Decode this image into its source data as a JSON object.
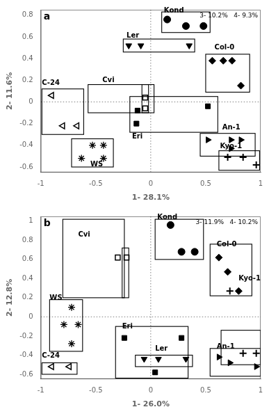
{
  "chart_data": [
    {
      "type": "scatter",
      "title": "a",
      "xlabel": "1- 28.1%",
      "ylabel": "2- 11.6%",
      "annotation": "3- 10.2%   4- 9.3%",
      "xlim": [
        -1.0,
        1.0
      ],
      "ylim": [
        -0.65,
        0.85
      ],
      "xticks": [
        -1,
        -0.5,
        0,
        0.5,
        1
      ],
      "yticks": [
        -0.6,
        -0.4,
        -0.2,
        0,
        0.2,
        0.4,
        0.6,
        0.8
      ],
      "grid": false,
      "legend": "none",
      "color": "black",
      "hlines": [
        0
      ],
      "vlines": [
        0
      ],
      "series": [
        {
          "name": "Kond",
          "marker": "filled_circle",
          "points": [
            [
              0.15,
              0.76
            ],
            [
              0.32,
              0.7
            ],
            [
              0.48,
              0.7
            ]
          ],
          "label_at": [
            0.12,
            0.81
          ],
          "box": [
            0.1,
            0.64,
            0.44,
            0.19
          ]
        },
        {
          "name": "Ler",
          "marker": "filled_tri_down",
          "points": [
            [
              -0.2,
              0.52
            ],
            [
              -0.09,
              0.52
            ],
            [
              0.35,
              0.52
            ]
          ],
          "label_at": [
            -0.22,
            0.58
          ],
          "box": [
            -0.25,
            0.46,
            0.65,
            0.12
          ]
        },
        {
          "name": "Col-0",
          "marker": "filled_diamond",
          "points": [
            [
              0.56,
              0.38
            ],
            [
              0.66,
              0.38
            ],
            [
              0.74,
              0.38
            ],
            [
              0.82,
              0.15
            ]
          ],
          "label_at": [
            0.58,
            0.47
          ],
          "box": [
            0.5,
            0.09,
            0.4,
            0.35
          ]
        },
        {
          "name": "C-24",
          "marker": "open_tri_left",
          "points": [
            [
              -0.9,
              0.06
            ],
            [
              -0.8,
              -0.22
            ],
            [
              -0.67,
              -0.22
            ]
          ],
          "label_at": [
            -0.99,
            0.14
          ],
          "box": [
            -0.99,
            -0.3,
            0.38,
            0.42
          ]
        },
        {
          "name": "Cvi",
          "marker": "open_square",
          "points": [
            [
              -0.05,
              0.04
            ],
            [
              -0.05,
              -0.06
            ]
          ],
          "label_at": [
            -0.44,
            0.17
          ],
          "box": [
            -0.57,
            -0.1,
            0.6,
            0.26
          ],
          "inner_box": [
            -0.08,
            -0.1,
            0.06,
            0.26
          ]
        },
        {
          "name": "Eri",
          "marker": "filled_square",
          "points": [
            [
              -0.12,
              -0.08
            ],
            [
              -0.13,
              -0.2
            ],
            [
              0.52,
              -0.04
            ]
          ],
          "label_at": [
            -0.17,
            -0.35
          ],
          "box": [
            -0.19,
            -0.28,
            0.8,
            0.33
          ]
        },
        {
          "name": "An-1",
          "marker": "filled_tri_right",
          "points": [
            [
              0.52,
              -0.35
            ],
            [
              0.73,
              -0.35
            ],
            [
              0.82,
              -0.35
            ],
            [
              0.73,
              -0.43
            ]
          ],
          "label_at": [
            0.65,
            -0.27
          ],
          "box": [
            0.45,
            -0.5,
            0.5,
            0.21
          ]
        },
        {
          "name": "WS",
          "marker": "open_star",
          "points": [
            [
              -0.53,
              -0.4
            ],
            [
              -0.43,
              -0.4
            ],
            [
              -0.63,
              -0.52
            ],
            [
              -0.43,
              -0.52
            ]
          ],
          "label_at": [
            -0.55,
            -0.61
          ],
          "box": [
            -0.72,
            -0.6,
            0.38,
            0.26
          ]
        },
        {
          "name": "Kyo-1",
          "marker": "cross",
          "points": [
            [
              0.7,
              -0.51
            ],
            [
              0.84,
              -0.51
            ],
            [
              0.96,
              -0.58
            ]
          ],
          "label_at": [
            0.63,
            -0.44
          ],
          "box": [
            0.62,
            -0.63,
            0.37,
            0.18
          ]
        }
      ]
    },
    {
      "type": "scatter",
      "title": "b",
      "xlabel": "1- 26.0%",
      "ylabel": "2- 12.8%",
      "annotation": "3- 11.9%   4- 10.2%",
      "xlim": [
        -1.0,
        1.0
      ],
      "ylim": [
        -0.65,
        1.05
      ],
      "xticks": [
        -1,
        -0.5,
        0,
        0.5,
        1
      ],
      "yticks": [
        -0.6,
        -0.4,
        -0.2,
        0,
        0.2,
        0.4,
        0.6,
        0.8,
        1.0
      ],
      "grid": false,
      "legend": "none",
      "color": "black",
      "hlines": [
        0
      ],
      "vlines": [
        0
      ],
      "series": [
        {
          "name": "Kond",
          "marker": "filled_circle",
          "points": [
            [
              0.18,
              0.96
            ],
            [
              0.28,
              0.68
            ],
            [
              0.4,
              0.68
            ]
          ],
          "label_at": [
            0.06,
            1.0
          ],
          "box": [
            0.04,
            0.6,
            0.44,
            0.42
          ]
        },
        {
          "name": "Col-0",
          "marker": "filled_diamond",
          "points": [
            [
              0.62,
              0.62
            ],
            [
              0.7,
              0.47
            ],
            [
              0.8,
              0.27
            ]
          ],
          "label_at": [
            0.6,
            0.72
          ],
          "box": [
            0.54,
            0.22,
            0.38,
            0.54
          ]
        },
        {
          "name": "Kyo-1",
          "marker": "cross",
          "points": [
            [
              0.72,
              0.27
            ],
            [
              0.84,
              -0.38
            ],
            [
              0.96,
              -0.38
            ]
          ],
          "label_at": [
            0.8,
            0.36
          ],
          "box": [
            0.64,
            -0.5,
            0.36,
            0.36
          ]
        },
        {
          "name": "Cvi",
          "marker": "open_square",
          "points": [
            [
              -0.3,
              0.62
            ],
            [
              -0.22,
              0.62
            ]
          ],
          "label_at": [
            -0.66,
            0.82
          ],
          "box": [
            -0.8,
            0.2,
            0.56,
            0.82
          ],
          "inner_box": [
            -0.26,
            0.2,
            0.06,
            0.52
          ]
        },
        {
          "name": "WS",
          "marker": "open_star",
          "points": [
            [
              -0.72,
              0.1
            ],
            [
              -0.79,
              -0.08
            ],
            [
              -0.66,
              -0.08
            ],
            [
              -0.72,
              -0.28
            ]
          ],
          "label_at": [
            -0.92,
            0.16
          ],
          "box": [
            -0.92,
            -0.36,
            0.3,
            0.54
          ]
        },
        {
          "name": "C-24",
          "marker": "open_tri_left",
          "points": [
            [
              -0.9,
              -0.52
            ],
            [
              -0.74,
              -0.52
            ]
          ],
          "label_at": [
            -0.99,
            -0.44
          ],
          "box": [
            -0.99,
            -0.6,
            0.32,
            0.12
          ]
        },
        {
          "name": "Eri",
          "marker": "filled_square",
          "points": [
            [
              -0.24,
              -0.22
            ],
            [
              0.28,
              -0.22
            ],
            [
              0.04,
              -0.58
            ]
          ],
          "label_at": [
            -0.26,
            -0.14
          ],
          "box": [
            -0.32,
            -0.64,
            0.66,
            0.54
          ]
        },
        {
          "name": "Ler",
          "marker": "filled_tri_down",
          "points": [
            [
              -0.06,
              -0.44
            ],
            [
              0.07,
              -0.44
            ],
            [
              0.32,
              -0.44
            ]
          ],
          "label_at": [
            0.04,
            -0.37
          ],
          "box": [
            -0.14,
            -0.52,
            0.52,
            0.12
          ]
        },
        {
          "name": "An-1",
          "marker": "filled_tri_right",
          "points": [
            [
              0.62,
              -0.42
            ],
            [
              0.72,
              -0.48
            ],
            [
              0.96,
              -0.52
            ]
          ],
          "label_at": [
            0.6,
            -0.35
          ],
          "box": [
            0.54,
            -0.62,
            0.46,
            0.29
          ]
        }
      ]
    }
  ]
}
